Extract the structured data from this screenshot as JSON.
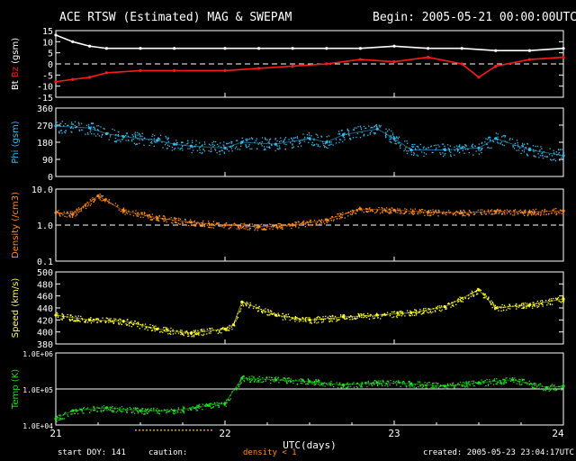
{
  "header": {
    "title": "ACE RTSW (Estimated) MAG & SWEPAM",
    "begin": "Begin: 2005-05-21 00:00:00UTC"
  },
  "footer": {
    "start_doy": "start DOY: 141",
    "caution": "caution:",
    "density_note": "density < 1",
    "created": "created: 2005-05-23 23:04:17UTC"
  },
  "colors": {
    "bt": "#ffffff",
    "bz": "#ff1a1a",
    "phi": "#33bbee",
    "density": "#ff8c1a",
    "speed": "#ffff33",
    "temp": "#22dd22",
    "axes": "#ffffff"
  },
  "chart_data": [
    {
      "type": "line",
      "ylabel_parts": [
        "Bt",
        "Bz",
        "(gsm)"
      ],
      "ylim": [
        -15,
        15
      ],
      "yticks": [
        "15",
        "10",
        "5",
        "0",
        "-5",
        "-10",
        "-15"
      ],
      "ref_line": 0,
      "series": [
        {
          "name": "Bt",
          "x": [
            21.0,
            21.1,
            21.2,
            21.3,
            21.5,
            21.7,
            22.0,
            22.2,
            22.4,
            22.6,
            22.8,
            23.0,
            23.2,
            23.4,
            23.6,
            23.8,
            24.0
          ],
          "values": [
            13,
            10,
            8,
            7,
            7,
            7,
            7,
            7,
            7,
            7,
            7,
            8,
            7,
            7,
            6,
            6,
            7
          ]
        },
        {
          "name": "Bz",
          "x": [
            21.0,
            21.1,
            21.2,
            21.3,
            21.5,
            21.7,
            22.0,
            22.2,
            22.4,
            22.6,
            22.8,
            23.0,
            23.2,
            23.4,
            23.5,
            23.6,
            23.8,
            24.0
          ],
          "values": [
            -8,
            -7,
            -6,
            -4,
            -3,
            -3,
            -3,
            -2,
            -1,
            0,
            2,
            1,
            3,
            0,
            -6,
            -1,
            2,
            3
          ]
        }
      ]
    },
    {
      "type": "scatter",
      "ylabel_parts": [
        "Phi (gsm)"
      ],
      "ylim": [
        0,
        360
      ],
      "yticks": [
        "360",
        "270",
        "180",
        "90",
        "0"
      ],
      "series": [
        {
          "name": "Phi",
          "x": [
            21.0,
            21.2,
            21.3,
            21.4,
            21.6,
            21.7,
            21.8,
            22.0,
            22.1,
            22.3,
            22.5,
            22.6,
            22.7,
            22.9,
            23.0,
            23.1,
            23.3,
            23.5,
            23.6,
            23.8,
            24.0
          ],
          "values": [
            265,
            255,
            225,
            210,
            190,
            170,
            160,
            150,
            180,
            170,
            200,
            180,
            220,
            250,
            200,
            140,
            140,
            150,
            200,
            140,
            110
          ]
        }
      ]
    },
    {
      "type": "scatter",
      "ylabel_parts": [
        "Density (/cm3)"
      ],
      "yscale": "log",
      "ylim": [
        0.1,
        10
      ],
      "yticks": [
        "10.0",
        "1.0",
        "0.1"
      ],
      "ref_line": 1.0,
      "series": [
        {
          "name": "Density",
          "x": [
            21.0,
            21.1,
            21.25,
            21.4,
            21.6,
            21.8,
            22.0,
            22.2,
            22.4,
            22.6,
            22.8,
            23.0,
            23.2,
            23.4,
            23.6,
            23.8,
            24.0
          ],
          "values": [
            2.2,
            2.0,
            6.5,
            2.5,
            1.6,
            1.2,
            1.0,
            0.9,
            1.0,
            1.4,
            2.8,
            2.6,
            2.3,
            2.2,
            2.4,
            2.3,
            2.5
          ]
        }
      ]
    },
    {
      "type": "scatter",
      "ylabel_parts": [
        "Speed (km/s)"
      ],
      "ylim": [
        380,
        500
      ],
      "yticks": [
        "500",
        "480",
        "460",
        "440",
        "420",
        "400",
        "380"
      ],
      "series": [
        {
          "name": "Speed",
          "x": [
            21.0,
            21.2,
            21.4,
            21.6,
            21.8,
            22.0,
            22.05,
            22.1,
            22.3,
            22.5,
            22.7,
            22.9,
            23.1,
            23.3,
            23.5,
            23.6,
            23.8,
            24.0
          ],
          "values": [
            428,
            420,
            418,
            405,
            398,
            405,
            412,
            450,
            428,
            420,
            425,
            428,
            432,
            442,
            470,
            440,
            445,
            455
          ]
        }
      ]
    },
    {
      "type": "scatter",
      "ylabel_parts": [
        "Temp (K)"
      ],
      "yscale": "log",
      "ylim": [
        10000,
        1000000
      ],
      "yticks": [
        "1.0E+06",
        "1.0E+05",
        "1.0E+04"
      ],
      "ref_line": 100000,
      "series": [
        {
          "name": "Temp",
          "x": [
            21.0,
            21.1,
            21.3,
            21.5,
            21.7,
            21.9,
            22.0,
            22.1,
            22.3,
            22.5,
            22.7,
            22.9,
            23.1,
            23.3,
            23.5,
            23.7,
            23.9,
            24.0
          ],
          "values": [
            15000,
            25000,
            30000,
            25000,
            25000,
            35000,
            40000,
            200000,
            180000,
            160000,
            130000,
            150000,
            140000,
            120000,
            150000,
            180000,
            110000,
            120000
          ]
        }
      ]
    }
  ],
  "xaxis": {
    "xlim": [
      21,
      24
    ],
    "ticks": [
      "21",
      "22",
      "23",
      "24"
    ],
    "label": "UTC(days)"
  }
}
